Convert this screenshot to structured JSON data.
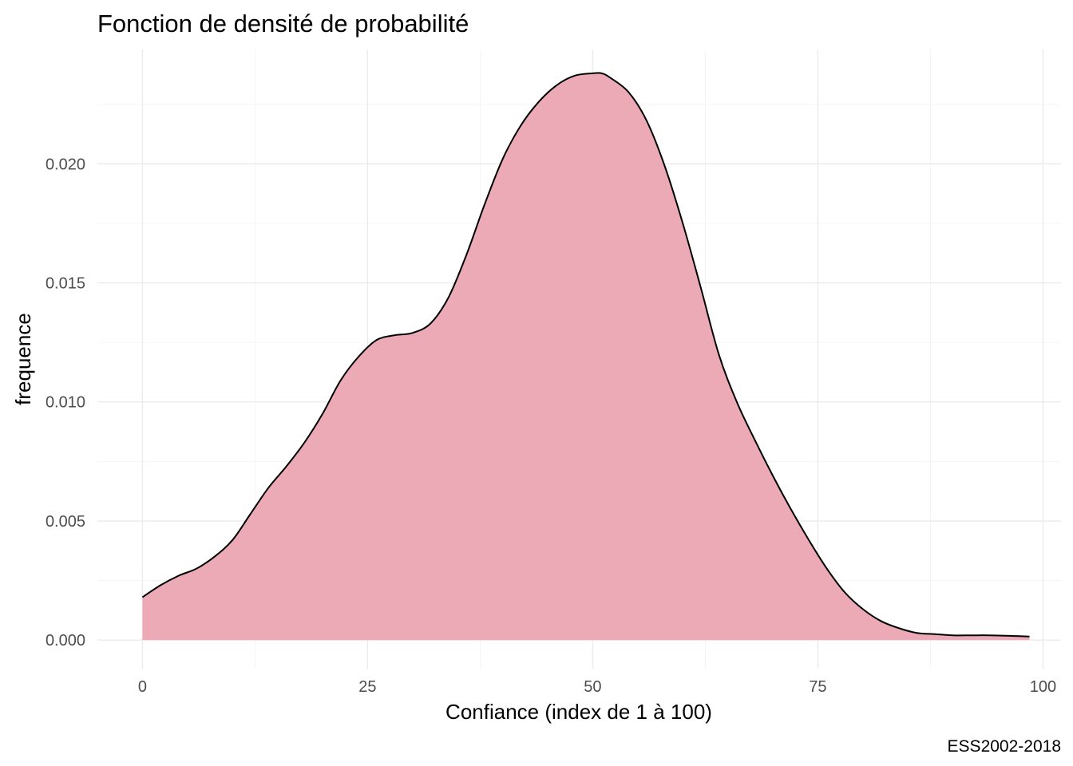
{
  "chart_data": {
    "type": "area",
    "title": "Fonction de densité de probabilité",
    "xlabel": "Confiance (index de 1 à 100)",
    "ylabel": "frequence",
    "caption": "ESS2002-2018",
    "xlim": [
      -5,
      102
    ],
    "ylim": [
      -0.0012,
      0.0248
    ],
    "x_ticks": [
      0,
      25,
      50,
      75,
      100
    ],
    "x_tick_labels": [
      "0",
      "25",
      "50",
      "75",
      "100"
    ],
    "x_minor_ticks": [
      12.5,
      37.5,
      62.5,
      87.5
    ],
    "y_ticks": [
      0,
      0.005,
      0.01,
      0.015,
      0.02
    ],
    "y_tick_labels": [
      "0.000",
      "0.005",
      "0.010",
      "0.015",
      "0.020"
    ],
    "y_minor_ticks": [
      0.0025,
      0.0075,
      0.0125,
      0.0175,
      0.0225
    ],
    "grid": true,
    "legend": "none",
    "fill_color": "#ecaab7",
    "line_color": "#000000",
    "series": [
      {
        "x": [
          0,
          2,
          4,
          6,
          8,
          10,
          12,
          14,
          16,
          18,
          20,
          22,
          24,
          26,
          28,
          30,
          32,
          34,
          36,
          38,
          40,
          42,
          44,
          46,
          48,
          50,
          51,
          52,
          54,
          56,
          58,
          60,
          62,
          64,
          66,
          68,
          70,
          72,
          74,
          76,
          78,
          80,
          82,
          84,
          86,
          88,
          90,
          92,
          94,
          96,
          98.5
        ],
        "y": [
          0.0018,
          0.0023,
          0.0027,
          0.003,
          0.0035,
          0.0042,
          0.0053,
          0.0064,
          0.0073,
          0.0083,
          0.0095,
          0.0109,
          0.0119,
          0.0126,
          0.0128,
          0.0129,
          0.0133,
          0.0144,
          0.0162,
          0.0183,
          0.0202,
          0.0216,
          0.0226,
          0.0233,
          0.0237,
          0.0238,
          0.0238,
          0.0236,
          0.023,
          0.0218,
          0.0199,
          0.0175,
          0.0148,
          0.012,
          0.01,
          0.0084,
          0.0069,
          0.0055,
          0.0042,
          0.003,
          0.002,
          0.0013,
          0.0008,
          0.0005,
          0.0003,
          0.00025,
          0.0002,
          0.0002,
          0.0002,
          0.00018,
          0.00015
        ]
      }
    ]
  }
}
